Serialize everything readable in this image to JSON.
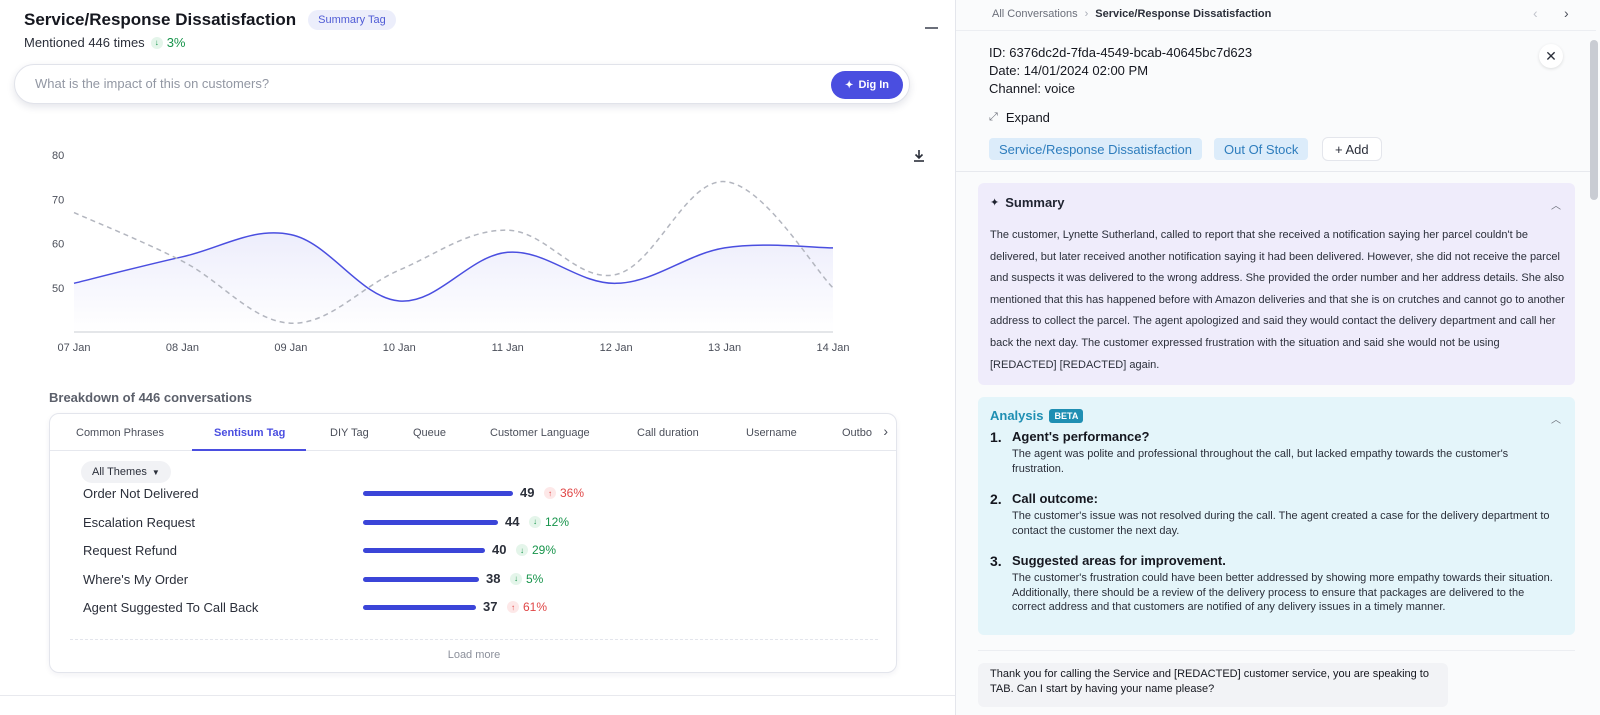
{
  "header": {
    "title": "Service/Response Dissatisfaction",
    "tag_label": "Summary Tag",
    "mentioned": "Mentioned 446 times",
    "change": "3%"
  },
  "ask": {
    "placeholder": "What is the impact of this on customers?",
    "button_label": "Dig In"
  },
  "chart_data": {
    "type": "line",
    "x": [
      "07 Jan",
      "08 Jan",
      "09 Jan",
      "10 Jan",
      "11 Jan",
      "12 Jan",
      "13 Jan",
      "14 Jan"
    ],
    "ylim": [
      40,
      80
    ],
    "yticks": [
      "50",
      "60",
      "70",
      "80"
    ],
    "grid": false,
    "series": [
      {
        "values": [
          51,
          57,
          62,
          47,
          58,
          51,
          59,
          59
        ],
        "color": "#4a4ee0",
        "style": "solid-area"
      },
      {
        "values": [
          67,
          56,
          42,
          54,
          63,
          53,
          74,
          50
        ],
        "color": "#b3b6bf",
        "style": "dashed"
      }
    ]
  },
  "breakdown": {
    "title": "Breakdown of 446 conversations",
    "tabs": [
      "Common Phrases",
      "Sentisum Tag",
      "DIY Tag",
      "Queue",
      "Customer Language",
      "Call duration",
      "Username",
      "Outbo"
    ],
    "filter_label": "All Themes",
    "rows": [
      {
        "label": "Order Not Delivered",
        "value": 49,
        "value_text": "49",
        "trend": "36%",
        "direction": "up"
      },
      {
        "label": "Escalation Request",
        "value": 44,
        "value_text": "44",
        "trend": "12%",
        "direction": "down"
      },
      {
        "label": "Request Refund",
        "value": 40,
        "value_text": "40",
        "trend": "29%",
        "direction": "down"
      },
      {
        "label": "Where's My Order",
        "value": 38,
        "value_text": "38",
        "trend": "5%",
        "direction": "down"
      },
      {
        "label": "Agent Suggested To Call Back",
        "value": 37,
        "value_text": "37",
        "trend": "61%",
        "direction": "up"
      }
    ],
    "load_more": "Load more"
  },
  "detail": {
    "breadcrumb_root": "All Conversations",
    "breadcrumb_current": "Service/Response Dissatisfaction",
    "id_label": "ID:",
    "id_value": "6376dc2d-7fda-4549-bcab-40645bc7d623",
    "date_label": "Date:",
    "date_value": "14/01/2024 02:00 PM",
    "channel_label": "Channel:",
    "channel_value": "voice",
    "expand_label": "Expand",
    "tags": [
      "Service/Response Dissatisfaction",
      "Out Of Stock"
    ],
    "add_label": "+ Add",
    "summary_title": "Summary",
    "summary_text": "The customer, Lynette Sutherland, called to report that she received a notification saying her parcel couldn't be delivered, but later received another notification saying it had been delivered. However, she did not receive the parcel and suspects it was delivered to the wrong address. She provided the order number and her address details. She also mentioned that this has happened before with Amazon deliveries and that she is on crutches and cannot go to another address to collect the parcel. The agent apologized and said they would contact the delivery department and call her back the next day. The customer expressed frustration with the situation and said she would not be using [REDACTED] [REDACTED] again.",
    "analysis_title": "Analysis",
    "analysis_badge": "BETA",
    "analysis": [
      {
        "num": "1.",
        "head": "Agent's performance?",
        "body": "The agent was polite and professional throughout the call, but lacked empathy towards the customer's frustration."
      },
      {
        "num": "2.",
        "head": "Call outcome:",
        "body": "The customer's issue was not resolved during the call. The agent created a case for the delivery department to contact the customer the next day."
      },
      {
        "num": "3.",
        "head": "Suggested areas for improvement.",
        "body": "The customer's frustration could have been better addressed by showing more empathy towards their situation. Additionally, there should be a review of the delivery process to ensure that packages are delivered to the correct address and that customers are notified of any delivery issues in a timely manner."
      }
    ],
    "transcript_first": "Thank you for calling the Service and [REDACTED] customer service, you are speaking to TAB. Can I start by having your name please?"
  }
}
